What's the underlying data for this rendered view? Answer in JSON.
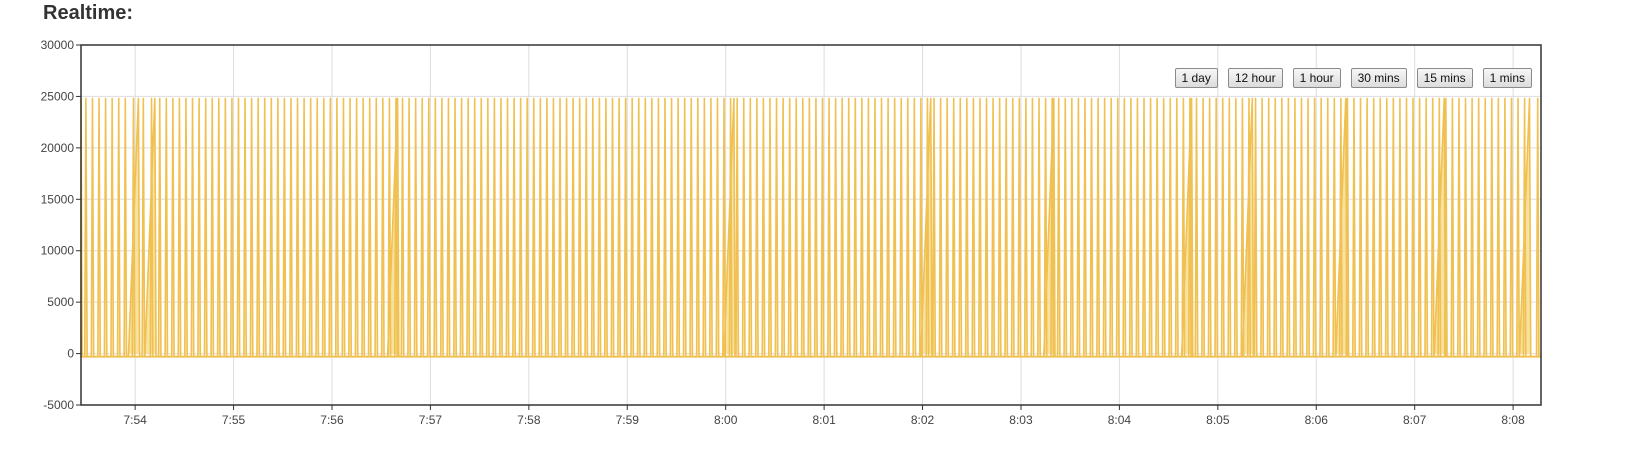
{
  "title": "Realtime:",
  "range_buttons": [
    "1 day",
    "12 hour",
    "1 hour",
    "30 mins",
    "15 mins",
    "1 mins"
  ],
  "colors": {
    "series": "#f0c050",
    "fill": "#f7dd92",
    "grid": "#dddddd",
    "frame": "#333333",
    "text": "#444444"
  },
  "chart_data": {
    "type": "area",
    "title": "Realtime:",
    "xlabel": "",
    "ylabel": "",
    "ylim": [
      -5000,
      30000
    ],
    "yticks": [
      -5000,
      0,
      5000,
      10000,
      15000,
      20000,
      25000,
      30000
    ],
    "xlim": [
      "7:53:27",
      "8:08:17"
    ],
    "xticks": [
      "7:54",
      "7:55",
      "7:56",
      "7:57",
      "7:58",
      "7:59",
      "8:00",
      "8:01",
      "8:02",
      "8:03",
      "8:04",
      "8:05",
      "8:06",
      "8:07",
      "8:08"
    ],
    "grid": true,
    "series": [
      {
        "pattern": "periodic spikes",
        "peak_value": 24800,
        "baseline_value": -300,
        "spike_times": [
          "7:53:30",
          "7:53:34",
          "7:53:38",
          "7:53:42",
          "7:53:46",
          "7:53:50",
          "7:53:54",
          "7:53:59",
          "7:54:05",
          "7:54:10",
          "7:54:15",
          "7:54:19",
          "7:54:23",
          "7:54:27",
          "7:54:31",
          "7:54:35",
          "7:54:39",
          "7:54:43",
          "7:54:47",
          "7:54:51",
          "7:54:55",
          "7:54:59",
          "7:55:03",
          "7:55:07",
          "7:55:11",
          "7:55:15",
          "7:55:19",
          "7:55:23",
          "7:55:27",
          "7:55:31",
          "7:55:35",
          "7:55:39",
          "7:55:43",
          "7:55:47",
          "7:55:51",
          "7:55:55",
          "7:55:59",
          "7:56:03",
          "7:56:07",
          "7:56:11",
          "7:56:15",
          "7:56:19",
          "7:56:23",
          "7:56:27",
          "7:56:31",
          "7:56:35",
          "7:56:39",
          "7:56:43",
          "7:56:47",
          "7:56:51",
          "7:56:55",
          "7:56:59",
          "7:57:03",
          "7:57:07",
          "7:57:11",
          "7:57:15",
          "7:57:19",
          "7:57:23",
          "7:57:27",
          "7:57:31",
          "7:57:35",
          "7:57:39",
          "7:57:43",
          "7:57:47",
          "7:57:51",
          "7:57:55",
          "7:57:59",
          "7:58:03",
          "7:58:07",
          "7:58:11",
          "7:58:15",
          "7:58:19",
          "7:58:23",
          "7:58:27",
          "7:58:31",
          "7:58:35",
          "7:58:39",
          "7:58:43",
          "7:58:47",
          "7:58:51",
          "7:58:55",
          "7:58:59",
          "7:59:03",
          "7:59:07",
          "7:59:11",
          "7:59:15",
          "7:59:19",
          "7:59:23",
          "7:59:27",
          "7:59:31",
          "7:59:35",
          "7:59:39",
          "7:59:43",
          "7:59:47",
          "7:59:51",
          "7:59:55",
          "7:59:59",
          "8:00:03",
          "8:00:07",
          "8:00:11",
          "8:00:15",
          "8:00:19",
          "8:00:23",
          "8:00:27",
          "8:00:31",
          "8:00:35",
          "8:00:39",
          "8:00:43",
          "8:00:47",
          "8:00:51",
          "8:00:55",
          "8:00:59",
          "8:01:03",
          "8:01:07",
          "8:01:11",
          "8:01:15",
          "8:01:19",
          "8:01:23",
          "8:01:27",
          "8:01:31",
          "8:01:35",
          "8:01:39",
          "8:01:43",
          "8:01:47",
          "8:01:51",
          "8:01:55",
          "8:01:59",
          "8:02:03",
          "8:02:07",
          "8:02:11",
          "8:02:15",
          "8:02:19",
          "8:02:23",
          "8:02:27",
          "8:02:31",
          "8:02:35",
          "8:02:39",
          "8:02:43",
          "8:02:47",
          "8:02:51",
          "8:02:55",
          "8:02:59",
          "8:03:03",
          "8:03:07",
          "8:03:11",
          "8:03:15",
          "8:03:19",
          "8:03:23",
          "8:03:27",
          "8:03:31",
          "8:03:35",
          "8:03:39",
          "8:03:43",
          "8:03:47",
          "8:03:51",
          "8:03:55",
          "8:03:59",
          "8:04:03",
          "8:04:07",
          "8:04:11",
          "8:04:15",
          "8:04:19",
          "8:04:23",
          "8:04:27",
          "8:04:31",
          "8:04:35",
          "8:04:39",
          "8:04:43",
          "8:04:47",
          "8:04:51",
          "8:04:55",
          "8:04:59",
          "8:05:03",
          "8:05:07",
          "8:05:11",
          "8:05:15",
          "8:05:19",
          "8:05:23",
          "8:05:27",
          "8:05:31",
          "8:05:35",
          "8:05:39",
          "8:05:43",
          "8:05:47",
          "8:05:51",
          "8:05:55",
          "8:05:59",
          "8:06:03",
          "8:06:07",
          "8:06:11",
          "8:06:15",
          "8:06:19",
          "8:06:23",
          "8:06:27",
          "8:06:31",
          "8:06:35",
          "8:06:39",
          "8:06:43",
          "8:06:47",
          "8:06:51",
          "8:06:55",
          "8:06:59",
          "8:07:03",
          "8:07:07",
          "8:07:11",
          "8:07:15",
          "8:07:19",
          "8:07:23",
          "8:07:27",
          "8:07:31",
          "8:07:35",
          "8:07:39",
          "8:07:43",
          "8:07:47",
          "8:07:51",
          "8:07:55",
          "8:07:59",
          "8:08:03",
          "8:08:07",
          "8:08:15"
        ],
        "slow_rise_times": [
          "7:53:27",
          "7:54:02",
          "7:54:12",
          "7:56:40",
          "8:00:05",
          "8:02:05",
          "8:03:20",
          "8:04:44",
          "8:05:21",
          "8:06:18",
          "8:07:18",
          "8:08:10"
        ]
      }
    ]
  }
}
